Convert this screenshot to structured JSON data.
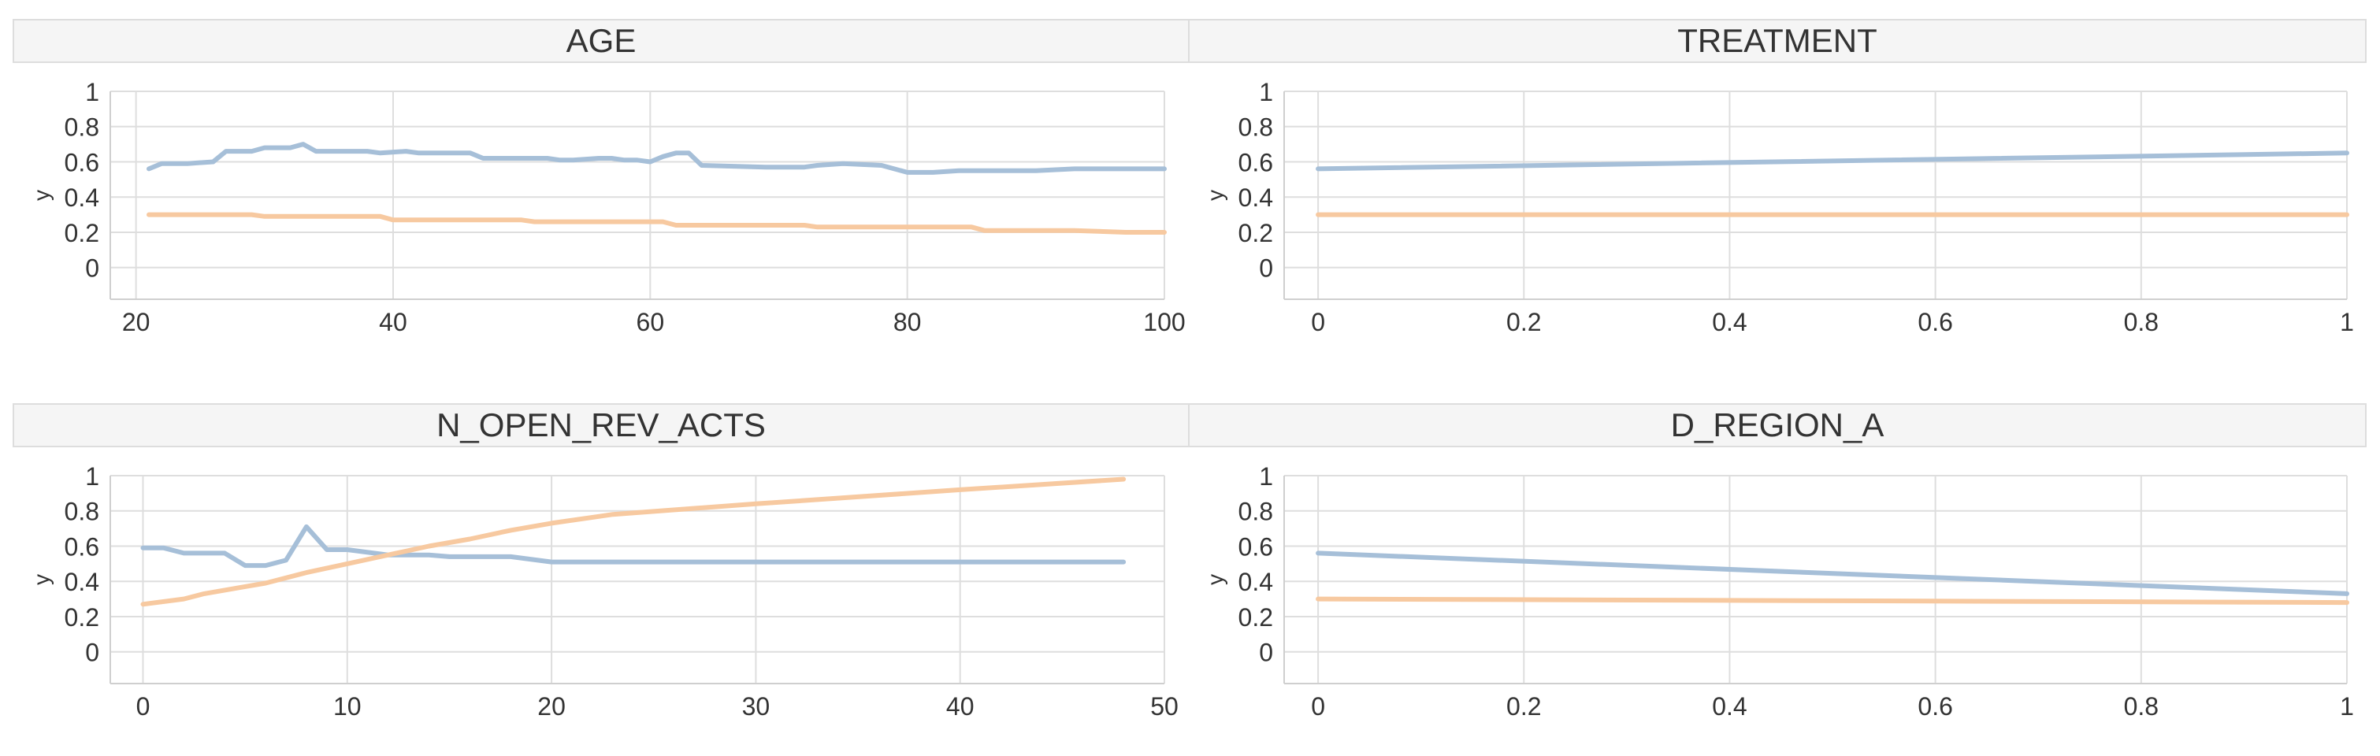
{
  "series_colors": [
    "#a6bfd8",
    "#f7c9a0"
  ],
  "chart_data": [
    {
      "type": "line",
      "title": "AGE",
      "ylabel": "y",
      "xlim": [
        18,
        100
      ],
      "ylim": [
        -0.18,
        1
      ],
      "grid": true,
      "xticks": [
        20,
        40,
        60,
        80,
        100
      ],
      "yticks": [
        0,
        0.2,
        0.4,
        0.6,
        0.8,
        1
      ],
      "series": [
        {
          "x": [
            21,
            22,
            24,
            26,
            27,
            29,
            30,
            32,
            33,
            34,
            38,
            39,
            41,
            42,
            46,
            47,
            48,
            52,
            53,
            54,
            56,
            57,
            58,
            59,
            60,
            61,
            62,
            63,
            64,
            69,
            70,
            72,
            73,
            75,
            78,
            80,
            82,
            84,
            88,
            90,
            93,
            97,
            100
          ],
          "values": [
            0.56,
            0.59,
            0.59,
            0.6,
            0.66,
            0.66,
            0.68,
            0.68,
            0.7,
            0.66,
            0.66,
            0.65,
            0.66,
            0.65,
            0.65,
            0.62,
            0.62,
            0.62,
            0.61,
            0.61,
            0.62,
            0.62,
            0.61,
            0.61,
            0.6,
            0.63,
            0.65,
            0.65,
            0.58,
            0.57,
            0.57,
            0.57,
            0.58,
            0.59,
            0.58,
            0.54,
            0.54,
            0.55,
            0.55,
            0.55,
            0.56,
            0.56,
            0.56
          ]
        },
        {
          "x": [
            21,
            29,
            30,
            39,
            40,
            50,
            51,
            61,
            62,
            72,
            73,
            85,
            86,
            93,
            97,
            100
          ],
          "values": [
            0.3,
            0.3,
            0.29,
            0.29,
            0.27,
            0.27,
            0.26,
            0.26,
            0.24,
            0.24,
            0.23,
            0.23,
            0.21,
            0.21,
            0.2,
            0.2
          ]
        }
      ]
    },
    {
      "type": "line",
      "title": "TREATMENT",
      "ylabel": "y",
      "xlim": [
        -0.033,
        1
      ],
      "ylim": [
        -0.18,
        1
      ],
      "grid": true,
      "xticks": [
        0,
        0.2,
        0.4,
        0.6,
        0.8,
        1
      ],
      "yticks": [
        0,
        0.2,
        0.4,
        0.6,
        0.8,
        1
      ],
      "series": [
        {
          "x": [
            0,
            1
          ],
          "values": [
            0.56,
            0.65
          ]
        },
        {
          "x": [
            0,
            1
          ],
          "values": [
            0.3,
            0.3
          ]
        }
      ]
    },
    {
      "type": "line",
      "title": "N_OPEN_REV_ACTS",
      "ylabel": "y",
      "xlim": [
        -1.6,
        50
      ],
      "ylim": [
        -0.18,
        1
      ],
      "grid": true,
      "xticks": [
        0,
        10,
        20,
        30,
        40,
        50
      ],
      "yticks": [
        0,
        0.2,
        0.4,
        0.6,
        0.8,
        1
      ],
      "series": [
        {
          "x": [
            0,
            1,
            2,
            3,
            4,
            5,
            6,
            7,
            8,
            9,
            10,
            12,
            14,
            15,
            18,
            20,
            30,
            40,
            48
          ],
          "values": [
            0.59,
            0.59,
            0.56,
            0.56,
            0.56,
            0.49,
            0.49,
            0.52,
            0.71,
            0.58,
            0.58,
            0.55,
            0.55,
            0.54,
            0.54,
            0.51,
            0.51,
            0.51,
            0.51
          ]
        },
        {
          "x": [
            0,
            2,
            3,
            5,
            6,
            8,
            10,
            12,
            14,
            16,
            18,
            20,
            23,
            30,
            40,
            48
          ],
          "values": [
            0.27,
            0.3,
            0.33,
            0.37,
            0.39,
            0.45,
            0.5,
            0.55,
            0.6,
            0.64,
            0.69,
            0.73,
            0.78,
            0.84,
            0.92,
            0.98
          ]
        }
      ]
    },
    {
      "type": "line",
      "title": "D_REGION_A",
      "ylabel": "y",
      "xlim": [
        -0.033,
        1
      ],
      "ylim": [
        -0.18,
        1
      ],
      "grid": true,
      "xticks": [
        0,
        0.2,
        0.4,
        0.6,
        0.8,
        1
      ],
      "yticks": [
        0,
        0.2,
        0.4,
        0.6,
        0.8,
        1
      ],
      "series": [
        {
          "x": [
            0,
            1
          ],
          "values": [
            0.56,
            0.33
          ]
        },
        {
          "x": [
            0,
            1
          ],
          "values": [
            0.3,
            0.28
          ]
        }
      ]
    }
  ]
}
